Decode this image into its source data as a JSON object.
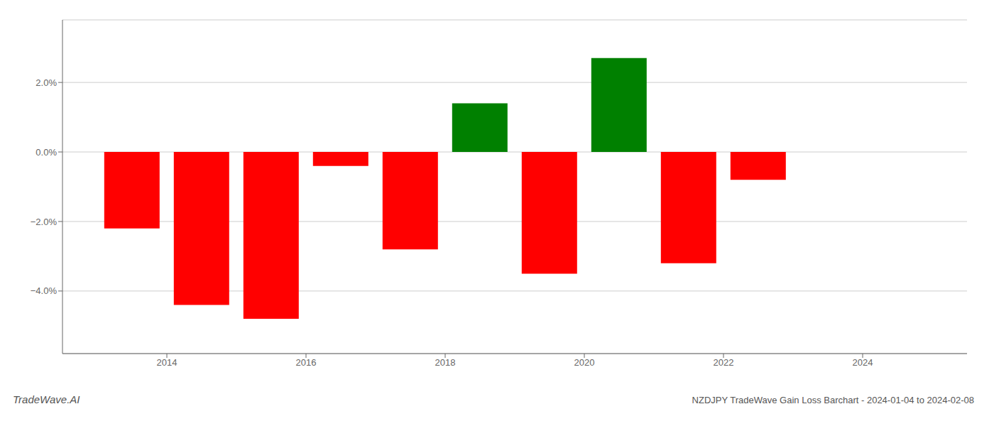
{
  "chart_data": {
    "type": "bar",
    "title": "NZDJPY TradeWave Gain Loss Barchart - 2024-01-04 to 2024-02-08",
    "annotations": [
      "TradeWave.AI"
    ],
    "x": [
      2013.5,
      2014.5,
      2015.5,
      2016.5,
      2017.5,
      2018.5,
      2019.5,
      2020.5,
      2021.5,
      2022.5
    ],
    "values": [
      -0.022,
      -0.044,
      -0.048,
      -0.004,
      -0.028,
      0.014,
      -0.035,
      0.027,
      -0.032,
      -0.008
    ],
    "colors": [
      "red",
      "red",
      "red",
      "red",
      "red",
      "green",
      "red",
      "green",
      "red",
      "red"
    ],
    "xlim": [
      2012.5,
      2025.5
    ],
    "ylim": [
      -0.058,
      0.038
    ],
    "xticks": [
      2014,
      2016,
      2018,
      2020,
      2022,
      2024
    ],
    "yticks": [
      {
        "value": -0.04,
        "label": "−4.0%"
      },
      {
        "value": -0.02,
        "label": "−2.0%"
      },
      {
        "value": 0.0,
        "label": "0.0%"
      },
      {
        "value": 0.02,
        "label": "2.0%"
      }
    ],
    "grid": "y"
  }
}
